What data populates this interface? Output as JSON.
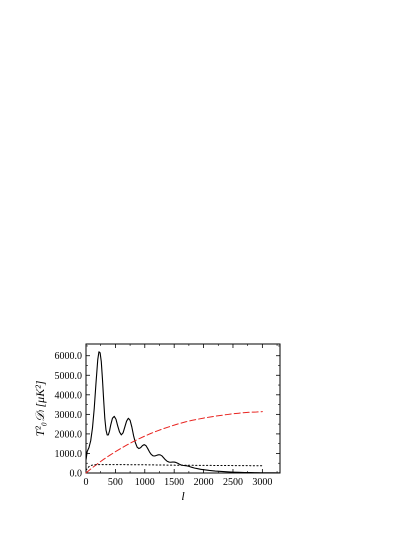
{
  "chart_data": {
    "type": "line",
    "title": "",
    "xlabel": "l",
    "ylabel": "T²₀𝒟ₗ [μK²]",
    "xlim": [
      0,
      3300
    ],
    "ylim": [
      0,
      6600
    ],
    "x_ticks": [
      0,
      500,
      1000,
      1500,
      2000,
      2500,
      3000
    ],
    "x_tick_labels": [
      "0",
      "500",
      "1000",
      "1500",
      "2000",
      "2500",
      "3000"
    ],
    "y_ticks": [
      0,
      1000,
      2000,
      3000,
      4000,
      5000,
      6000
    ],
    "y_tick_labels": [
      "0.0",
      "1000.0",
      "2000.0",
      "3000.0",
      "4000.0",
      "5000.0",
      "6000.0"
    ],
    "grid": false,
    "legend": "none",
    "series": [
      {
        "style": "solid",
        "color": "#000000",
        "x": [
          2,
          20,
          50,
          80,
          110,
          140,
          170,
          200,
          220,
          240,
          260,
          280,
          300,
          320,
          340,
          360,
          380,
          400,
          420,
          450,
          480,
          510,
          540,
          570,
          600,
          630,
          660,
          690,
          720,
          750,
          780,
          810,
          840,
          870,
          900,
          930,
          960,
          990,
          1020,
          1050,
          1080,
          1110,
          1140,
          1170,
          1200,
          1230,
          1260,
          1290,
          1320,
          1350,
          1380,
          1410,
          1440,
          1470,
          1500,
          1530,
          1560,
          1590,
          1620,
          1650,
          1680,
          1710,
          1740,
          1770,
          1800,
          1850,
          1900,
          1950,
          2000,
          2100,
          2200,
          2300,
          2400,
          2500,
          2600,
          2700,
          2800,
          2900,
          3000,
          3100,
          3200,
          3300
        ],
        "y": [
          700,
          1100,
          1300,
          1650,
          2300,
          3300,
          4600,
          5800,
          6200,
          6150,
          5700,
          4800,
          3750,
          2800,
          2200,
          1950,
          1950,
          2150,
          2450,
          2800,
          2900,
          2750,
          2400,
          2100,
          1950,
          2050,
          2350,
          2650,
          2800,
          2700,
          2350,
          1900,
          1550,
          1320,
          1250,
          1300,
          1400,
          1450,
          1400,
          1250,
          1080,
          950,
          880,
          870,
          900,
          930,
          930,
          880,
          780,
          680,
          600,
          560,
          550,
          560,
          560,
          540,
          500,
          450,
          410,
          390,
          380,
          370,
          350,
          320,
          290,
          250,
          220,
          190,
          170,
          130,
          100,
          80,
          60,
          45,
          35,
          25,
          20,
          15,
          12,
          10,
          8,
          6
        ]
      },
      {
        "style": "dashed",
        "color": "#e8231f",
        "x": [
          2,
          100,
          200,
          300,
          400,
          500,
          600,
          700,
          800,
          900,
          1000,
          1100,
          1200,
          1300,
          1400,
          1500,
          1600,
          1700,
          1800,
          1900,
          2000,
          2100,
          2200,
          2300,
          2400,
          2500,
          2600,
          2700,
          2800,
          2900,
          3000
        ],
        "y": [
          10,
          250,
          480,
          700,
          900,
          1090,
          1270,
          1440,
          1600,
          1750,
          1890,
          2020,
          2140,
          2250,
          2350,
          2450,
          2540,
          2620,
          2690,
          2750,
          2810,
          2860,
          2910,
          2950,
          2990,
          3030,
          3060,
          3090,
          3110,
          3120,
          3140
        ]
      },
      {
        "style": "dotted",
        "color": "#000000",
        "x": [
          2,
          50,
          100,
          150,
          200,
          300,
          400,
          500,
          700,
          1000,
          1500,
          2000,
          2500,
          3000
        ],
        "y": [
          150,
          330,
          400,
          420,
          430,
          430,
          430,
          430,
          425,
          420,
          400,
          390,
          380,
          370
        ]
      }
    ]
  }
}
